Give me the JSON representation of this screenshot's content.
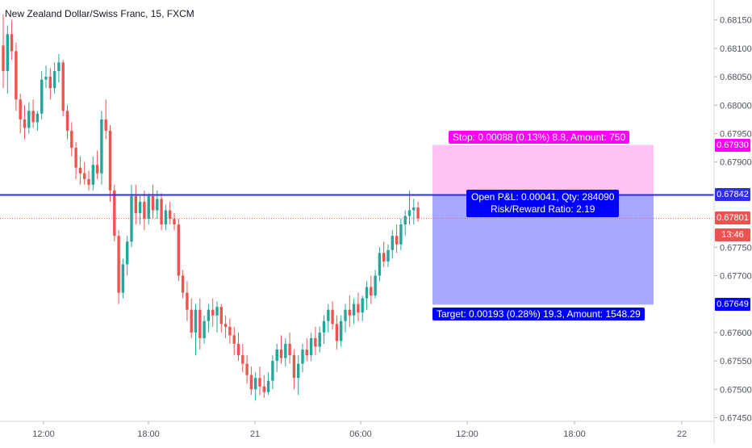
{
  "header": {
    "symbol_title": "New Zealand Dollar/Swiss Franc, 15, FXCM"
  },
  "chart_data": {
    "type": "candlestick",
    "title": "New Zealand Dollar/Swiss Franc, 15, FXCM",
    "ylim": [
      0.67445,
      0.68185
    ],
    "y_ticks": [
      "0.68150",
      "0.68100",
      "0.68050",
      "0.68000",
      "0.67950",
      "0.67900",
      "0.67750",
      "0.67700",
      "0.67600",
      "0.67550",
      "0.67500",
      "0.67450"
    ],
    "x_ticks": [
      "12:00",
      "18:00",
      "21",
      "06:00",
      "12:00",
      "18:00",
      "22"
    ],
    "grid": false,
    "candles": [
      {
        "o": 0.68105,
        "h": 0.6816,
        "l": 0.6803,
        "c": 0.6806
      },
      {
        "o": 0.6806,
        "h": 0.6814,
        "l": 0.6802,
        "c": 0.68125
      },
      {
        "o": 0.68125,
        "h": 0.6815,
        "l": 0.6808,
        "c": 0.68095
      },
      {
        "o": 0.68095,
        "h": 0.6811,
        "l": 0.6799,
        "c": 0.6801
      },
      {
        "o": 0.6801,
        "h": 0.6802,
        "l": 0.6795,
        "c": 0.67975
      },
      {
        "o": 0.67975,
        "h": 0.68,
        "l": 0.6794,
        "c": 0.6796
      },
      {
        "o": 0.6796,
        "h": 0.68005,
        "l": 0.6795,
        "c": 0.6799
      },
      {
        "o": 0.6799,
        "h": 0.6801,
        "l": 0.6796,
        "c": 0.6797
      },
      {
        "o": 0.6797,
        "h": 0.6799,
        "l": 0.67955,
        "c": 0.67985
      },
      {
        "o": 0.67985,
        "h": 0.6806,
        "l": 0.67975,
        "c": 0.68045
      },
      {
        "o": 0.68045,
        "h": 0.6807,
        "l": 0.6803,
        "c": 0.6805
      },
      {
        "o": 0.6805,
        "h": 0.68065,
        "l": 0.6801,
        "c": 0.6803
      },
      {
        "o": 0.6803,
        "h": 0.68075,
        "l": 0.6802,
        "c": 0.6806
      },
      {
        "o": 0.6806,
        "h": 0.6809,
        "l": 0.6804,
        "c": 0.68075
      },
      {
        "o": 0.68075,
        "h": 0.6808,
        "l": 0.6798,
        "c": 0.6799
      },
      {
        "o": 0.6799,
        "h": 0.68,
        "l": 0.6794,
        "c": 0.67955
      },
      {
        "o": 0.67955,
        "h": 0.6797,
        "l": 0.6791,
        "c": 0.67925
      },
      {
        "o": 0.67925,
        "h": 0.67935,
        "l": 0.6787,
        "c": 0.6789
      },
      {
        "o": 0.6789,
        "h": 0.6791,
        "l": 0.6786,
        "c": 0.6788
      },
      {
        "o": 0.6788,
        "h": 0.679,
        "l": 0.6786,
        "c": 0.6787
      },
      {
        "o": 0.6787,
        "h": 0.67885,
        "l": 0.6785,
        "c": 0.6786
      },
      {
        "o": 0.6786,
        "h": 0.6791,
        "l": 0.6785,
        "c": 0.67895
      },
      {
        "o": 0.67895,
        "h": 0.6792,
        "l": 0.6787,
        "c": 0.6788
      },
      {
        "o": 0.6788,
        "h": 0.6799,
        "l": 0.6786,
        "c": 0.67975
      },
      {
        "o": 0.67975,
        "h": 0.6801,
        "l": 0.6794,
        "c": 0.67955
      },
      {
        "o": 0.67955,
        "h": 0.67965,
        "l": 0.6783,
        "c": 0.6785
      },
      {
        "o": 0.6785,
        "h": 0.6786,
        "l": 0.6776,
        "c": 0.6777
      },
      {
        "o": 0.6777,
        "h": 0.6778,
        "l": 0.6765,
        "c": 0.6767
      },
      {
        "o": 0.6767,
        "h": 0.6773,
        "l": 0.6766,
        "c": 0.6772
      },
      {
        "o": 0.6772,
        "h": 0.6777,
        "l": 0.677,
        "c": 0.6776
      },
      {
        "o": 0.6776,
        "h": 0.6786,
        "l": 0.6775,
        "c": 0.6784
      },
      {
        "o": 0.6784,
        "h": 0.6786,
        "l": 0.6779,
        "c": 0.6781
      },
      {
        "o": 0.6781,
        "h": 0.6784,
        "l": 0.6779,
        "c": 0.6783
      },
      {
        "o": 0.6783,
        "h": 0.6785,
        "l": 0.6778,
        "c": 0.678
      },
      {
        "o": 0.678,
        "h": 0.67845,
        "l": 0.6779,
        "c": 0.6784
      },
      {
        "o": 0.6784,
        "h": 0.6786,
        "l": 0.678,
        "c": 0.67815
      },
      {
        "o": 0.67815,
        "h": 0.6785,
        "l": 0.678,
        "c": 0.67835
      },
      {
        "o": 0.67835,
        "h": 0.67845,
        "l": 0.6778,
        "c": 0.6779
      },
      {
        "o": 0.6779,
        "h": 0.67825,
        "l": 0.6778,
        "c": 0.67815
      },
      {
        "o": 0.67815,
        "h": 0.6783,
        "l": 0.6779,
        "c": 0.678
      },
      {
        "o": 0.678,
        "h": 0.6781,
        "l": 0.6778,
        "c": 0.6779
      },
      {
        "o": 0.6779,
        "h": 0.678,
        "l": 0.6769,
        "c": 0.677
      },
      {
        "o": 0.677,
        "h": 0.6771,
        "l": 0.6766,
        "c": 0.6767
      },
      {
        "o": 0.6767,
        "h": 0.6769,
        "l": 0.6762,
        "c": 0.6764
      },
      {
        "o": 0.6764,
        "h": 0.6766,
        "l": 0.6759,
        "c": 0.676
      },
      {
        "o": 0.676,
        "h": 0.6765,
        "l": 0.6756,
        "c": 0.6764
      },
      {
        "o": 0.6764,
        "h": 0.6766,
        "l": 0.6757,
        "c": 0.6759
      },
      {
        "o": 0.6759,
        "h": 0.6763,
        "l": 0.6758,
        "c": 0.6762
      },
      {
        "o": 0.6762,
        "h": 0.6765,
        "l": 0.676,
        "c": 0.6764
      },
      {
        "o": 0.6764,
        "h": 0.6766,
        "l": 0.6761,
        "c": 0.6763
      },
      {
        "o": 0.6763,
        "h": 0.67655,
        "l": 0.676,
        "c": 0.67645
      },
      {
        "o": 0.67645,
        "h": 0.6765,
        "l": 0.676,
        "c": 0.67615
      },
      {
        "o": 0.67615,
        "h": 0.6763,
        "l": 0.6759,
        "c": 0.6761
      },
      {
        "o": 0.6761,
        "h": 0.67625,
        "l": 0.6758,
        "c": 0.67595
      },
      {
        "o": 0.67595,
        "h": 0.6761,
        "l": 0.6756,
        "c": 0.6758
      },
      {
        "o": 0.6758,
        "h": 0.676,
        "l": 0.6755,
        "c": 0.6756
      },
      {
        "o": 0.6756,
        "h": 0.6758,
        "l": 0.6753,
        "c": 0.67545
      },
      {
        "o": 0.67545,
        "h": 0.6756,
        "l": 0.6751,
        "c": 0.67525
      },
      {
        "o": 0.67525,
        "h": 0.6754,
        "l": 0.6749,
        "c": 0.675
      },
      {
        "o": 0.675,
        "h": 0.6753,
        "l": 0.6748,
        "c": 0.6752
      },
      {
        "o": 0.6752,
        "h": 0.6754,
        "l": 0.6749,
        "c": 0.67505
      },
      {
        "o": 0.67505,
        "h": 0.67525,
        "l": 0.67485,
        "c": 0.67495
      },
      {
        "o": 0.67495,
        "h": 0.6753,
        "l": 0.6749,
        "c": 0.67515
      },
      {
        "o": 0.67515,
        "h": 0.6756,
        "l": 0.675,
        "c": 0.6755
      },
      {
        "o": 0.6755,
        "h": 0.6758,
        "l": 0.6753,
        "c": 0.6757
      },
      {
        "o": 0.6757,
        "h": 0.67595,
        "l": 0.67545,
        "c": 0.67555
      },
      {
        "o": 0.67555,
        "h": 0.6759,
        "l": 0.6754,
        "c": 0.6758
      },
      {
        "o": 0.6758,
        "h": 0.676,
        "l": 0.67545,
        "c": 0.6756
      },
      {
        "o": 0.6756,
        "h": 0.6757,
        "l": 0.675,
        "c": 0.6752
      },
      {
        "o": 0.6752,
        "h": 0.6756,
        "l": 0.6749,
        "c": 0.67545
      },
      {
        "o": 0.67545,
        "h": 0.6758,
        "l": 0.6753,
        "c": 0.6757
      },
      {
        "o": 0.6757,
        "h": 0.6759,
        "l": 0.6755,
        "c": 0.6756
      },
      {
        "o": 0.6756,
        "h": 0.676,
        "l": 0.6755,
        "c": 0.6759
      },
      {
        "o": 0.6759,
        "h": 0.6761,
        "l": 0.6756,
        "c": 0.67575
      },
      {
        "o": 0.67575,
        "h": 0.6761,
        "l": 0.67565,
        "c": 0.676
      },
      {
        "o": 0.676,
        "h": 0.6763,
        "l": 0.6758,
        "c": 0.6762
      },
      {
        "o": 0.6762,
        "h": 0.6765,
        "l": 0.676,
        "c": 0.6764
      },
      {
        "o": 0.6764,
        "h": 0.67655,
        "l": 0.67605,
        "c": 0.67615
      },
      {
        "o": 0.67615,
        "h": 0.6763,
        "l": 0.6757,
        "c": 0.67585
      },
      {
        "o": 0.67585,
        "h": 0.6763,
        "l": 0.67575,
        "c": 0.6762
      },
      {
        "o": 0.6762,
        "h": 0.6765,
        "l": 0.676,
        "c": 0.6764
      },
      {
        "o": 0.6764,
        "h": 0.67665,
        "l": 0.6761,
        "c": 0.6763
      },
      {
        "o": 0.6763,
        "h": 0.6766,
        "l": 0.67615,
        "c": 0.6765
      },
      {
        "o": 0.6765,
        "h": 0.6767,
        "l": 0.6762,
        "c": 0.67635
      },
      {
        "o": 0.67635,
        "h": 0.67665,
        "l": 0.6762,
        "c": 0.6766
      },
      {
        "o": 0.6766,
        "h": 0.6769,
        "l": 0.6764,
        "c": 0.6768
      },
      {
        "o": 0.6768,
        "h": 0.677,
        "l": 0.6765,
        "c": 0.67665
      },
      {
        "o": 0.67665,
        "h": 0.6771,
        "l": 0.6766,
        "c": 0.677
      },
      {
        "o": 0.677,
        "h": 0.6775,
        "l": 0.6769,
        "c": 0.6774
      },
      {
        "o": 0.6774,
        "h": 0.6776,
        "l": 0.67715,
        "c": 0.67725
      },
      {
        "o": 0.67725,
        "h": 0.67755,
        "l": 0.67715,
        "c": 0.67745
      },
      {
        "o": 0.67745,
        "h": 0.6778,
        "l": 0.6773,
        "c": 0.6777
      },
      {
        "o": 0.6777,
        "h": 0.6779,
        "l": 0.6774,
        "c": 0.67755
      },
      {
        "o": 0.67755,
        "h": 0.678,
        "l": 0.67745,
        "c": 0.6779
      },
      {
        "o": 0.6779,
        "h": 0.67815,
        "l": 0.6777,
        "c": 0.67805
      },
      {
        "o": 0.67805,
        "h": 0.6785,
        "l": 0.6779,
        "c": 0.67815
      },
      {
        "o": 0.67815,
        "h": 0.67835,
        "l": 0.6779,
        "c": 0.6782
      },
      {
        "o": 0.6782,
        "h": 0.6783,
        "l": 0.67795,
        "c": 0.67801
      }
    ]
  },
  "position": {
    "stop_label": "Stop: 0.00088 (0.13%) 8.8, Amount: 750",
    "target_label": "Target: 0.00193 (0.28%) 19.3, Amount: 1548.29",
    "pnl_line1": "Open P&L: 0.00041, Qty: 284090",
    "pnl_line2": "Risk/Reward Ratio: 2.19",
    "stop_price": 0.6793,
    "entry_price": 0.67842,
    "target_price": 0.67649,
    "current_price": 0.67801,
    "stop_tag": "0.67930",
    "entry_tag": "0.67842",
    "target_tag": "0.67649",
    "current_tag": "0.67801",
    "countdown_tag": "13:46",
    "colors": {
      "stop": "#ff00ff",
      "stop_zone": "#ffc2f5",
      "target": "#0000ff",
      "target_zone": "#a8a8ff",
      "entry_line": "#2e2ee6",
      "current": "#ef5350",
      "up": "#26a69a",
      "down": "#ef5350"
    }
  }
}
